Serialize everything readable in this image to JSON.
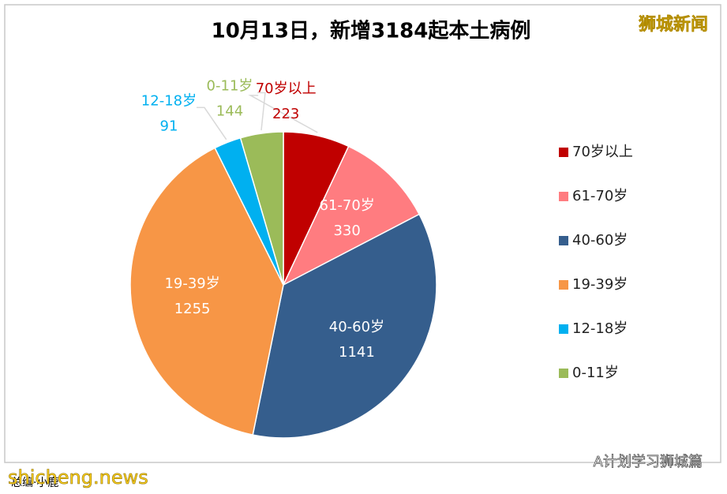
{
  "chart_data": {
    "type": "pie",
    "title": "10月13日，新增3184起本土病例",
    "categories": [
      "70岁以上",
      "61-70岁",
      "40-60岁",
      "19-39岁",
      "12-18岁",
      "0-11岁"
    ],
    "values": [
      223,
      330,
      1141,
      1255,
      91,
      144
    ],
    "colors": [
      "#c00000",
      "#ff7c80",
      "#355e8d",
      "#f79646",
      "#00b0f0",
      "#9bbb59"
    ],
    "legend": "right"
  },
  "watermarks": {
    "top_right": "狮城新闻",
    "bottom_left": "shicheng.news",
    "bottom_right": "A计划学习狮城篇",
    "credit": "总编·小鹿"
  }
}
